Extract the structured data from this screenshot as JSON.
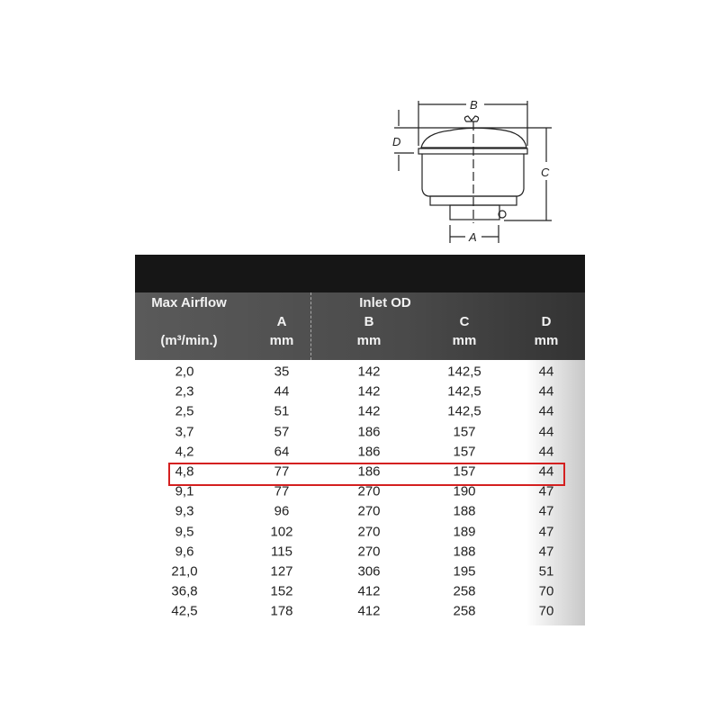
{
  "diagram": {
    "labels": {
      "a": "A",
      "b": "B",
      "c": "C",
      "d": "D"
    }
  },
  "table": {
    "headers": {
      "airflow": "Max Airflow",
      "airflow_unit": "(m³/min.)",
      "inlet": "Inlet OD",
      "a": "A",
      "a_unit": "mm",
      "b": "B",
      "b_unit": "mm",
      "c": "C",
      "c_unit": "mm",
      "d": "D",
      "d_unit": "mm"
    },
    "rows": [
      [
        "2,0",
        "35",
        "142",
        "142,5",
        "44"
      ],
      [
        "2,3",
        "44",
        "142",
        "142,5",
        "44"
      ],
      [
        "2,5",
        "51",
        "142",
        "142,5",
        "44"
      ],
      [
        "3,7",
        "57",
        "186",
        "157",
        "44"
      ],
      [
        "4,2",
        "64",
        "186",
        "157",
        "44"
      ],
      [
        "4,8",
        "77",
        "186",
        "157",
        "44"
      ],
      [
        "9,1",
        "77",
        "270",
        "190",
        "47"
      ],
      [
        "9,3",
        "96",
        "270",
        "188",
        "47"
      ],
      [
        "9,5",
        "102",
        "270",
        "189",
        "47"
      ],
      [
        "9,6",
        "115",
        "270",
        "188",
        "47"
      ],
      [
        "21,0",
        "127",
        "306",
        "195",
        "51"
      ],
      [
        "36,8",
        "152",
        "412",
        "258",
        "70"
      ],
      [
        "42,5",
        "178",
        "412",
        "258",
        "70"
      ]
    ],
    "highlighted_row": 5,
    "highlight_color": "#d42020"
  }
}
